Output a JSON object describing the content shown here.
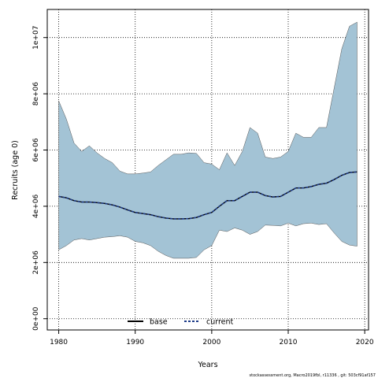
{
  "chart_data": {
    "type": "area",
    "title": "",
    "xlabel": "Years",
    "ylabel": "Recruits (age 0)",
    "xlim": [
      1978.5,
      2020.5
    ],
    "ylim": [
      -400000,
      11000000
    ],
    "x_ticks": [
      1980,
      1990,
      2000,
      2010,
      2020
    ],
    "x_tick_labels": [
      "1980",
      "1990",
      "2000",
      "2010",
      "2020"
    ],
    "y_ticks": [
      0,
      2000000,
      4000000,
      6000000,
      8000000,
      10000000
    ],
    "y_tick_labels": [
      "0e+00",
      "2e+06",
      "4e+06",
      "6e+06",
      "8e+06",
      "1e+07"
    ],
    "grid": true,
    "legend_position": "bottom-center",
    "band_color": "#a3c3d5",
    "x": [
      1980,
      1981,
      1982,
      1983,
      1984,
      1985,
      1986,
      1987,
      1988,
      1989,
      1990,
      1991,
      1992,
      1993,
      1994,
      1995,
      1996,
      1997,
      1998,
      1999,
      2000,
      2001,
      2002,
      2003,
      2004,
      2005,
      2006,
      2007,
      2008,
      2009,
      2010,
      2011,
      2012,
      2013,
      2014,
      2015,
      2016,
      2017,
      2018,
      2019
    ],
    "upper": [
      7750000,
      7100000,
      6250000,
      5950000,
      6150000,
      5900000,
      5700000,
      5550000,
      5250000,
      5150000,
      5150000,
      5180000,
      5220000,
      5450000,
      5650000,
      5850000,
      5850000,
      5900000,
      5880000,
      5550000,
      5500000,
      5300000,
      5900000,
      5450000,
      5950000,
      6800000,
      6600000,
      5750000,
      5700000,
      5750000,
      5950000,
      6600000,
      6450000,
      6450000,
      6800000,
      6800000,
      8200000,
      9600000,
      10400000,
      10550000
    ],
    "lower": [
      2450000,
      2600000,
      2800000,
      2850000,
      2800000,
      2850000,
      2900000,
      2920000,
      2950000,
      2900000,
      2750000,
      2700000,
      2600000,
      2400000,
      2250000,
      2150000,
      2150000,
      2150000,
      2180000,
      2450000,
      2600000,
      3150000,
      3100000,
      3230000,
      3150000,
      3000000,
      3100000,
      3330000,
      3320000,
      3300000,
      3400000,
      3300000,
      3380000,
      3400000,
      3350000,
      3380000,
      3050000,
      2750000,
      2620000,
      2580000
    ],
    "series": [
      {
        "name": "base",
        "color": "#000000",
        "values": [
          4350000,
          4300000,
          4200000,
          4150000,
          4150000,
          4130000,
          4100000,
          4050000,
          3970000,
          3870000,
          3780000,
          3740000,
          3700000,
          3630000,
          3580000,
          3550000,
          3550000,
          3560000,
          3600000,
          3700000,
          3780000,
          4000000,
          4200000,
          4200000,
          4350000,
          4500000,
          4500000,
          4380000,
          4330000,
          4350000,
          4500000,
          4650000,
          4650000,
          4700000,
          4780000,
          4820000,
          4950000,
          5100000,
          5200000,
          5220000
        ]
      },
      {
        "name": "current",
        "color": "#1f3c88",
        "values": [
          4350000,
          4300000,
          4200000,
          4150000,
          4150000,
          4130000,
          4100000,
          4050000,
          3970000,
          3870000,
          3780000,
          3740000,
          3700000,
          3630000,
          3580000,
          3550000,
          3550000,
          3560000,
          3600000,
          3700000,
          3780000,
          4000000,
          4200000,
          4200000,
          4350000,
          4500000,
          4500000,
          4380000,
          4330000,
          4350000,
          4500000,
          4650000,
          4650000,
          4700000,
          4780000,
          4820000,
          4950000,
          5100000,
          5200000,
          5220000
        ]
      }
    ],
    "legend": {
      "base_label": "base",
      "current_label": "current"
    },
    "footer": "stockassessment.org, Macro2019fbl, r11336 , git: 503cf91af157"
  }
}
